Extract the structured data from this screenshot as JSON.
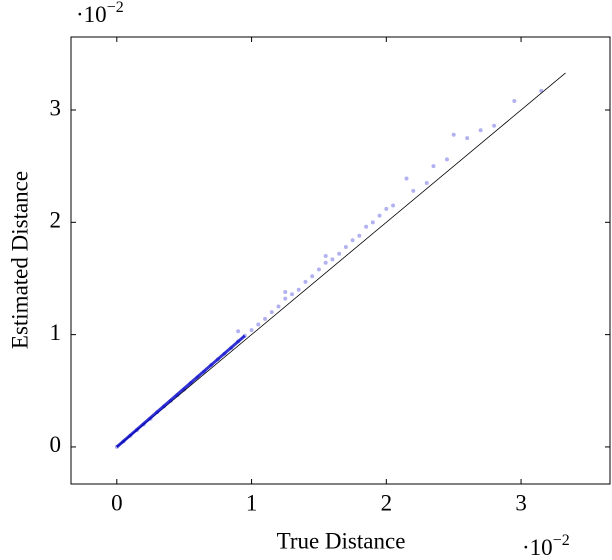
{
  "chart_data": {
    "type": "scatter",
    "x_label": "True Distance",
    "y_label": "Estimated Distance",
    "x_scale_label": {
      "base": "·10",
      "exponent": "−2"
    },
    "y_scale_label": {
      "base": "·10",
      "exponent": "−2"
    },
    "xlim": [
      -0.34,
      3.66
    ],
    "ylim": [
      -0.33,
      3.65
    ],
    "xticks": [
      0,
      1,
      2,
      3
    ],
    "yticks": [
      0,
      1,
      2,
      3
    ],
    "color": "#0000cc",
    "diagonal": {
      "color": "#000000",
      "x": [
        0,
        3.33
      ],
      "y": [
        0,
        3.33
      ]
    },
    "x": [
      0,
      0.05,
      0.1,
      0.15,
      0.2,
      0.25,
      0.3,
      0.35,
      0.4,
      0.45,
      0.5,
      0.55,
      0.6,
      0.65,
      0.7,
      0.75,
      0.8,
      0.85,
      0.9,
      0.95,
      1.0,
      1.05,
      1.1,
      1.15,
      1.2,
      1.25,
      1.3,
      1.35,
      1.4,
      1.45,
      1.5,
      1.55,
      1.6,
      1.65,
      1.7,
      1.75,
      1.8,
      1.85,
      1.9,
      1.95,
      2.0,
      2.05,
      2.15,
      2.2,
      2.3,
      2.35,
      2.45,
      2.5,
      2.6,
      2.7,
      2.8,
      2.95,
      3.15,
      0.9,
      1.25,
      1.55
    ],
    "y": [
      0,
      0.05,
      0.1,
      0.15,
      0.2,
      0.25,
      0.31,
      0.36,
      0.41,
      0.46,
      0.51,
      0.57,
      0.62,
      0.67,
      0.73,
      0.78,
      0.83,
      0.88,
      0.94,
      0.99,
      1.04,
      1.09,
      1.14,
      1.2,
      1.25,
      1.32,
      1.36,
      1.4,
      1.47,
      1.52,
      1.58,
      1.64,
      1.67,
      1.72,
      1.78,
      1.84,
      1.88,
      1.96,
      2.0,
      2.06,
      2.12,
      2.15,
      2.39,
      2.28,
      2.35,
      2.5,
      2.56,
      2.78,
      2.75,
      2.82,
      2.86,
      3.08,
      3.17,
      1.03,
      1.38,
      1.7
    ]
  }
}
